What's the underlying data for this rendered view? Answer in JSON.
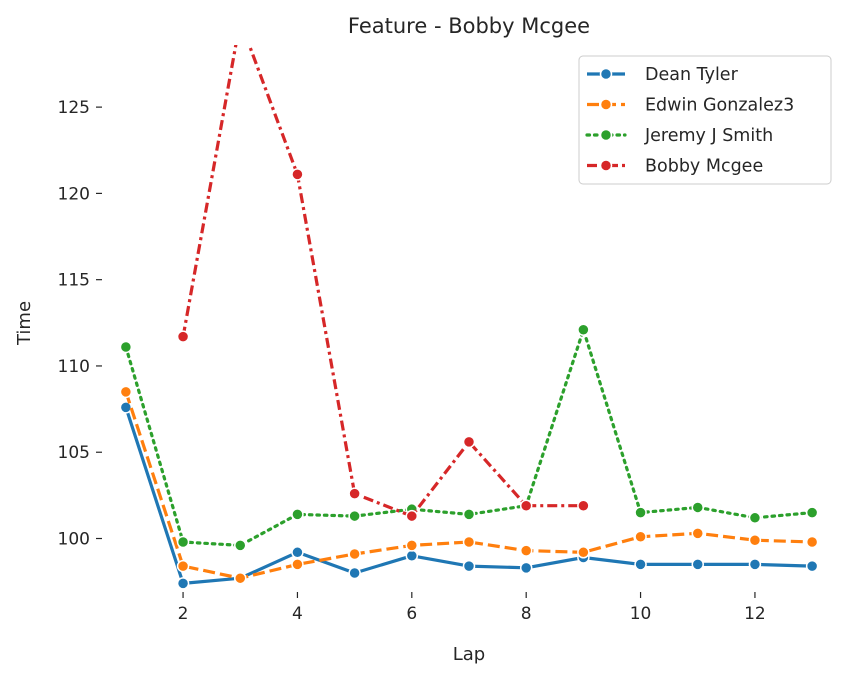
{
  "chart_data": {
    "type": "line",
    "title": "Feature - Bobby Mcgee",
    "xlabel": "Lap",
    "ylabel": "Time",
    "xlim": [
      0.6,
      13.4
    ],
    "ylim": [
      96.9,
      128.6
    ],
    "xticks": [
      2,
      4,
      6,
      8,
      10,
      12
    ],
    "yticks": [
      100,
      105,
      110,
      115,
      120,
      125
    ],
    "grid": false,
    "legend_position": "top-right",
    "series": [
      {
        "name": "Dean Tyler",
        "color": "#1f77b4",
        "dash": "solid",
        "x": [
          1,
          2,
          3,
          4,
          5,
          6,
          7,
          8,
          9,
          10,
          11,
          12,
          13
        ],
        "values": [
          107.6,
          97.4,
          97.7,
          99.2,
          98.0,
          99.0,
          98.4,
          98.3,
          98.9,
          98.5,
          98.5,
          98.5,
          98.4
        ]
      },
      {
        "name": "Edwin Gonzalez3",
        "color": "#ff7f0e",
        "dash": "dashed",
        "x": [
          1,
          2,
          3,
          4,
          5,
          6,
          7,
          8,
          9,
          10,
          11,
          12,
          13
        ],
        "values": [
          108.5,
          98.4,
          97.7,
          98.5,
          99.1,
          99.6,
          99.8,
          99.3,
          99.2,
          100.1,
          100.3,
          99.9,
          99.8
        ]
      },
      {
        "name": "Jeremy J Smith",
        "color": "#2ca02c",
        "dash": "dotted",
        "x": [
          1,
          2,
          3,
          4,
          5,
          6,
          7,
          8,
          9,
          10,
          11,
          12,
          13
        ],
        "values": [
          111.1,
          99.8,
          99.6,
          101.4,
          101.3,
          101.7,
          101.4,
          101.9,
          112.1,
          101.5,
          101.8,
          101.2,
          101.5
        ]
      },
      {
        "name": "Bobby Mcgee",
        "color": "#d62728",
        "dash": "dashdot",
        "x": [
          2,
          3,
          4,
          5,
          6,
          7,
          8,
          9
        ],
        "values": [
          111.7,
          130.0,
          121.1,
          102.6,
          101.3,
          105.6,
          101.9,
          101.9
        ]
      }
    ]
  }
}
